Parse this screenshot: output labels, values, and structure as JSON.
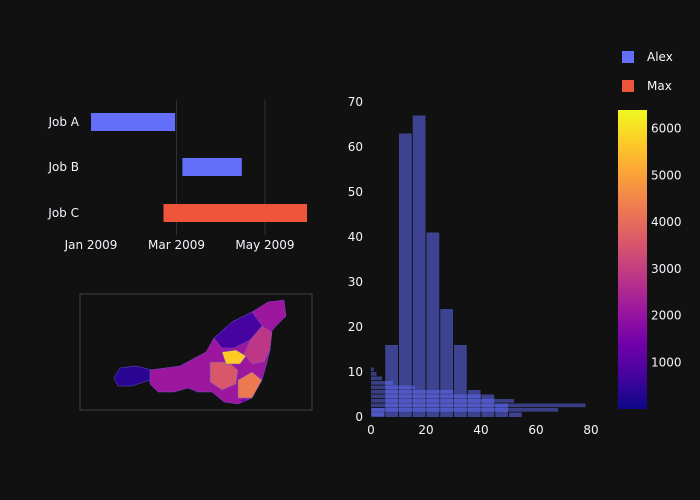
{
  "colors": {
    "background": "#111111",
    "text": "#f2f5fa",
    "grid": "#283442",
    "alex": "#636efa",
    "max": "#EF553B",
    "hist": "#636efa",
    "colorscale": [
      "#0d0887",
      "#46039f",
      "#7201a8",
      "#9c179e",
      "#bd3786",
      "#d8576b",
      "#ed7953",
      "#fb9f3a",
      "#fdca26",
      "#f0f921"
    ]
  },
  "legend": [
    {
      "name": "Alex",
      "color": "#636efa"
    },
    {
      "name": "Max",
      "color": "#EF553B"
    }
  ],
  "chart_data": [
    {
      "type": "gantt",
      "tasks": [
        {
          "task": "Job A",
          "start": "2009-01-01",
          "finish": "2009-02-28",
          "resource": "Alex"
        },
        {
          "task": "Job B",
          "start": "2009-03-05",
          "finish": "2009-04-15",
          "resource": "Alex"
        },
        {
          "task": "Job C",
          "start": "2009-02-20",
          "finish": "2009-05-30",
          "resource": "Max"
        }
      ],
      "x_ticks": [
        "Jan 2009",
        "Mar 2009",
        "May 2009"
      ],
      "categories": [
        "Job A",
        "Job B",
        "Job C"
      ]
    },
    {
      "type": "choropleth-map",
      "colorbar": {
        "min": 0,
        "max": 6400,
        "ticks": [
          1000,
          2000,
          3000,
          4000,
          5000,
          6000
        ]
      }
    },
    {
      "type": "bar",
      "orientation": "vertical",
      "bins": [
        0,
        5,
        10,
        15,
        20,
        25,
        30,
        35,
        40,
        45,
        50
      ],
      "values": [
        2,
        16,
        63,
        67,
        41,
        24,
        16,
        6,
        5,
        3,
        1
      ],
      "xlim": [
        0,
        80
      ],
      "ylim": [
        0,
        70
      ],
      "x_ticks": [
        0,
        20,
        40,
        60,
        80
      ],
      "y_ticks": [
        0,
        10,
        20,
        30,
        40,
        50,
        60,
        70
      ]
    },
    {
      "type": "bar",
      "orientation": "horizontal",
      "y_bins": [
        0,
        1,
        2,
        3,
        4,
        5,
        6,
        7,
        8,
        9,
        10
      ],
      "values": [
        5,
        68,
        78,
        52,
        40,
        30,
        16,
        8,
        4,
        2,
        1
      ]
    }
  ]
}
